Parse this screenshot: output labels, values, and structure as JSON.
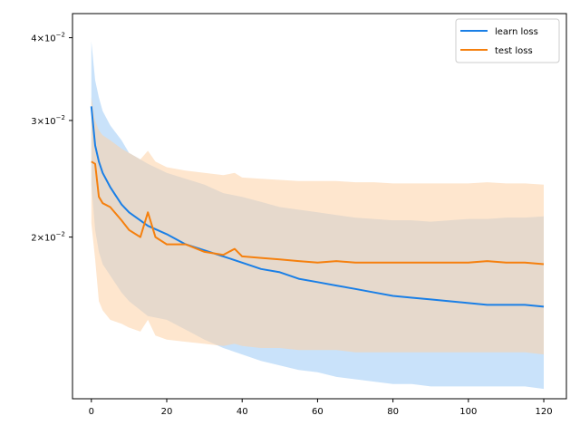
{
  "chart_data": {
    "type": "line",
    "title": "",
    "xlabel": "",
    "ylabel": "",
    "yscale": "log",
    "xlim": [
      -5,
      126
    ],
    "ylim": [
      0.0114,
      0.0435
    ],
    "xticks": [
      {
        "value": 0,
        "label": "0"
      },
      {
        "value": 20,
        "label": "20"
      },
      {
        "value": 40,
        "label": "40"
      },
      {
        "value": 60,
        "label": "60"
      },
      {
        "value": 80,
        "label": "80"
      },
      {
        "value": 100,
        "label": "100"
      },
      {
        "value": 120,
        "label": "120"
      }
    ],
    "yticks": [
      {
        "value": 0.02,
        "base": "2",
        "exp": "−2"
      },
      {
        "value": 0.03,
        "base": "3",
        "exp": "−2"
      },
      {
        "value": 0.04,
        "base": "4",
        "exp": "−2"
      }
    ],
    "grid": false,
    "legend": "top-right",
    "series": [
      {
        "name": "learn loss",
        "color": "#1a7fe6",
        "band_color": "#9ccbf6",
        "x": [
          0,
          1,
          2,
          3,
          5,
          8,
          10,
          15,
          20,
          25,
          30,
          35,
          40,
          45,
          50,
          55,
          60,
          65,
          70,
          75,
          80,
          85,
          90,
          95,
          100,
          105,
          110,
          115,
          120
        ],
        "y": [
          0.0315,
          0.0275,
          0.026,
          0.025,
          0.0238,
          0.0224,
          0.0218,
          0.0208,
          0.0202,
          0.0195,
          0.0191,
          0.0187,
          0.0183,
          0.0179,
          0.0177,
          0.0173,
          0.0171,
          0.0169,
          0.0167,
          0.0165,
          0.0163,
          0.0162,
          0.0161,
          0.016,
          0.0159,
          0.0158,
          0.0158,
          0.0158,
          0.0157
        ],
        "upper": [
          0.0395,
          0.0345,
          0.0325,
          0.031,
          0.0295,
          0.028,
          0.0268,
          0.0258,
          0.025,
          0.0245,
          0.024,
          0.0233,
          0.023,
          0.0226,
          0.0222,
          0.022,
          0.0218,
          0.0216,
          0.0214,
          0.0213,
          0.0212,
          0.0212,
          0.0211,
          0.0212,
          0.0213,
          0.0213,
          0.0214,
          0.0214,
          0.0215
        ],
        "lower": [
          0.024,
          0.0205,
          0.019,
          0.0182,
          0.0175,
          0.0165,
          0.016,
          0.0152,
          0.015,
          0.0145,
          0.014,
          0.0136,
          0.0133,
          0.013,
          0.0128,
          0.0126,
          0.0125,
          0.0123,
          0.0122,
          0.0121,
          0.012,
          0.012,
          0.0119,
          0.0119,
          0.0119,
          0.0119,
          0.0119,
          0.0119,
          0.0118
        ]
      },
      {
        "name": "test loss",
        "color": "#f5800e",
        "band_color": "#fdd1a6",
        "x": [
          0,
          1,
          2,
          3,
          5,
          8,
          10,
          13,
          15,
          17,
          20,
          25,
          30,
          35,
          38,
          40,
          45,
          50,
          55,
          60,
          65,
          70,
          75,
          80,
          85,
          90,
          95,
          100,
          105,
          110,
          115,
          120
        ],
        "y": [
          0.026,
          0.0258,
          0.023,
          0.0225,
          0.0222,
          0.0212,
          0.0205,
          0.02,
          0.0218,
          0.02,
          0.0195,
          0.0195,
          0.019,
          0.0188,
          0.0192,
          0.0187,
          0.0186,
          0.0185,
          0.0184,
          0.0183,
          0.0184,
          0.0183,
          0.0183,
          0.0183,
          0.0183,
          0.0183,
          0.0183,
          0.0183,
          0.0184,
          0.0183,
          0.0183,
          0.0182
        ],
        "upper": [
          0.0325,
          0.03,
          0.029,
          0.0285,
          0.028,
          0.0272,
          0.0268,
          0.0262,
          0.027,
          0.026,
          0.0255,
          0.0252,
          0.025,
          0.0248,
          0.025,
          0.0246,
          0.0245,
          0.0244,
          0.0243,
          0.0243,
          0.0243,
          0.0242,
          0.0242,
          0.0241,
          0.0241,
          0.0241,
          0.0241,
          0.0241,
          0.0242,
          0.0241,
          0.0241,
          0.024
        ],
        "lower": [
          0.021,
          0.0185,
          0.016,
          0.0155,
          0.015,
          0.0148,
          0.0146,
          0.0144,
          0.015,
          0.0142,
          0.014,
          0.0139,
          0.0138,
          0.0137,
          0.0138,
          0.0137,
          0.0136,
          0.0136,
          0.0135,
          0.0135,
          0.0135,
          0.0134,
          0.0134,
          0.0134,
          0.0134,
          0.0134,
          0.0134,
          0.0134,
          0.0134,
          0.0134,
          0.0134,
          0.0133
        ]
      }
    ]
  }
}
